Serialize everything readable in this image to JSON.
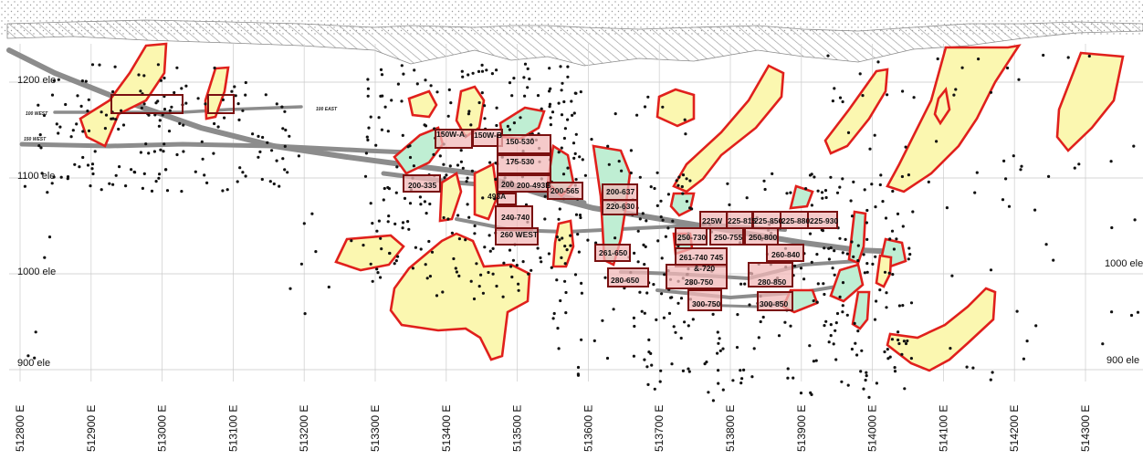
{
  "elevation_labels": {
    "left": [
      "1200 ele",
      "1100 ele",
      "1000 ele",
      "900 ele"
    ],
    "right": [
      "1000 ele",
      "900 ele"
    ]
  },
  "easting_labels": [
    "512800 E",
    "512900 E",
    "513000 E",
    "513100 E",
    "513200 E",
    "513300 E",
    "513400 E",
    "513500 E",
    "513600 E",
    "513700 E",
    "513800 E",
    "513900 E",
    "514000 E",
    "514100 E",
    "514200 E",
    "514300 E"
  ],
  "drift_labels": {
    "west_100": "100 WEST",
    "west_150": "150 WEST",
    "east_100": "100 EAST"
  },
  "stope_labels": [
    "150W-A",
    "150W-B",
    "150-530",
    "175-530",
    "200-335",
    "200",
    "200-493B",
    "493A",
    "200-565",
    "200-637",
    "220-630",
    "240-740",
    "260 WEST",
    "261-650",
    "280-650",
    "225W",
    "225-815",
    "225-850",
    "225-880",
    "225-930",
    "250-730",
    "250-755",
    "250-800",
    "260-840",
    "261-740",
    "745",
    "&-720",
    "280-750",
    "280-850",
    "300-750",
    "300-850"
  ],
  "colors": {
    "zone_yellow_fill": "#fbf7b0",
    "zone_green_fill": "#bfeed3",
    "zone_outline": "#e0201c",
    "stope_fill": "#f2b8b8",
    "stope_outline": "#7a1010",
    "drift": "#8c8c8c"
  }
}
